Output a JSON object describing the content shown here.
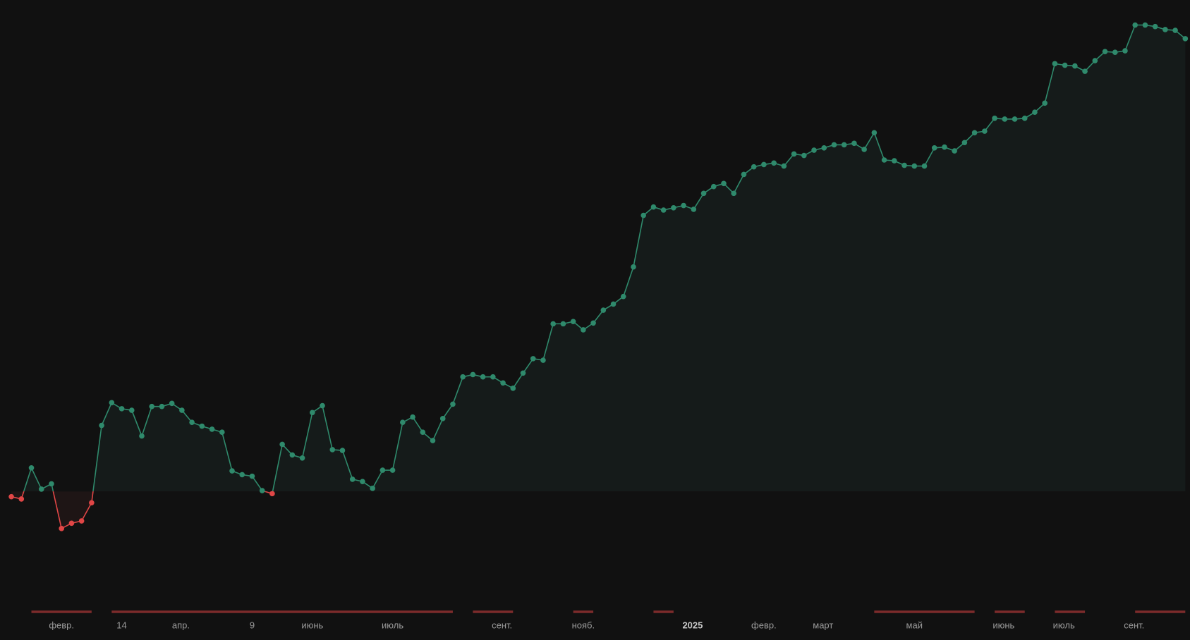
{
  "chart_data": {
    "type": "line",
    "values": [
      -7,
      -10,
      31,
      3,
      10,
      -49,
      -42,
      -39,
      -15,
      87,
      117,
      109,
      107,
      73,
      112,
      112,
      116,
      107,
      91,
      86,
      82,
      78,
      27,
      22,
      20,
      1,
      -3,
      62,
      48,
      44,
      104,
      113,
      55,
      54,
      16,
      13,
      4,
      28,
      28,
      91,
      98,
      78,
      67,
      96,
      115,
      151,
      154,
      151,
      151,
      143,
      136,
      156,
      175,
      173,
      221,
      221,
      224,
      213,
      222,
      239,
      247,
      257,
      296,
      364,
      375,
      371,
      374,
      377,
      372,
      393,
      402,
      406,
      393,
      418,
      428,
      431,
      433,
      429,
      445,
      443,
      450,
      453,
      457,
      457,
      459,
      451,
      473,
      437,
      436,
      430,
      429,
      429,
      453,
      454,
      449,
      460,
      473,
      475,
      492,
      491,
      491,
      492,
      500,
      512,
      564,
      562,
      561,
      554,
      568,
      580,
      579,
      581,
      615,
      615,
      613,
      609,
      608,
      597
    ],
    "color": "#2f8a6c",
    "negative_color": "#e04646",
    "xlim": [
      -1.13,
      117.47
    ],
    "ylim": [
      -196,
      648
    ],
    "xticks": [
      {
        "value": 5,
        "label": "февр."
      },
      {
        "value": 11,
        "label": "14"
      },
      {
        "value": 16.9,
        "label": "апр."
      },
      {
        "value": 24,
        "label": "9"
      },
      {
        "value": 30,
        "label": "июнь"
      },
      {
        "value": 38,
        "label": "июль"
      },
      {
        "value": 48.9,
        "label": "сент."
      },
      {
        "value": 57,
        "label": "нояб."
      },
      {
        "value": 67.9,
        "label": "2025"
      },
      {
        "value": 75,
        "label": "февр."
      },
      {
        "value": 80.9,
        "label": "март"
      },
      {
        "value": 90,
        "label": "май"
      },
      {
        "value": 98.9,
        "label": "июнь"
      },
      {
        "value": 104.9,
        "label": "июль"
      },
      {
        "value": 111.9,
        "label": "сент."
      }
    ],
    "bold_tick": 8,
    "drawdowns": [
      [
        2,
        8
      ],
      [
        10,
        44
      ],
      [
        46,
        50
      ],
      [
        56,
        58
      ],
      [
        64,
        66
      ],
      [
        86,
        96
      ],
      [
        98,
        101
      ],
      [
        104,
        107
      ],
      [
        112,
        117
      ]
    ],
    "drawdown_color": "#7c2b2b"
  }
}
